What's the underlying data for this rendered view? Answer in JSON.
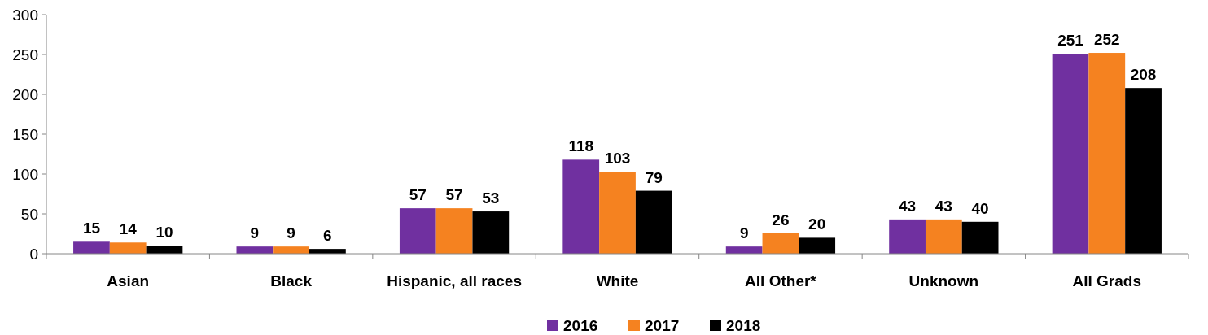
{
  "chart_data": {
    "type": "bar",
    "categories": [
      "Asian",
      "Black",
      "Hispanic, all races",
      "White",
      "All Other*",
      "Unknown",
      "All Grads"
    ],
    "series": [
      {
        "name": "2016",
        "color": "#7030a0",
        "values": [
          15,
          9,
          57,
          118,
          9,
          43,
          251
        ]
      },
      {
        "name": "2017",
        "color": "#f58220",
        "values": [
          14,
          9,
          57,
          103,
          26,
          43,
          252
        ]
      },
      {
        "name": "2018",
        "color": "#000000",
        "values": [
          10,
          6,
          53,
          79,
          20,
          40,
          208
        ]
      }
    ],
    "ylim": [
      0,
      300
    ],
    "yticks": [
      0,
      50,
      100,
      150,
      200,
      250,
      300
    ],
    "grid": false,
    "legend": "bottom",
    "data_labels": true
  }
}
